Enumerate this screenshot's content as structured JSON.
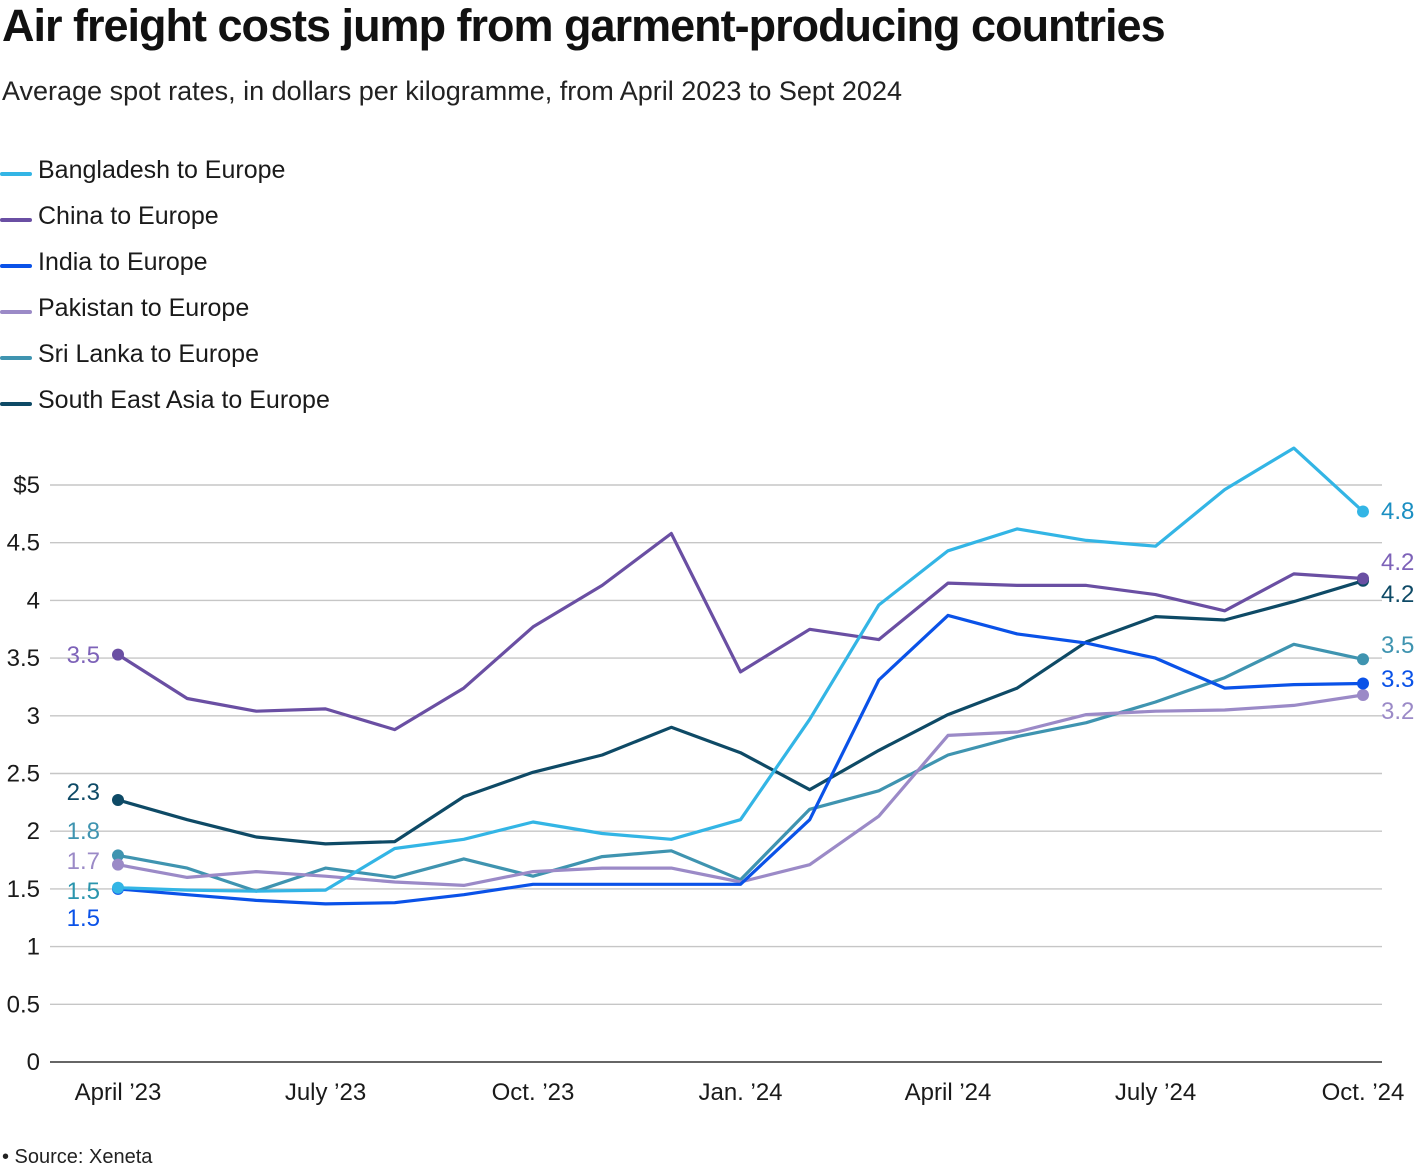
{
  "chart_data": {
    "type": "line",
    "title": "Air freight costs jump from garment-producing countries",
    "subtitle": "Average spot rates, in dollars per kilogramme, from April 2023 to Sept 2024",
    "source": "• Source: Xeneta",
    "xlabel": "",
    "ylabel": "",
    "ylim": [
      0,
      5
    ],
    "grid": true,
    "legend_position": "top-left",
    "y_ticks": [
      {
        "value": 0,
        "label": "0"
      },
      {
        "value": 0.5,
        "label": "0.5"
      },
      {
        "value": 1,
        "label": "1"
      },
      {
        "value": 1.5,
        "label": "1.5"
      },
      {
        "value": 2,
        "label": "2"
      },
      {
        "value": 2.5,
        "label": "2.5"
      },
      {
        "value": 3,
        "label": "3"
      },
      {
        "value": 3.5,
        "label": "3.5"
      },
      {
        "value": 4,
        "label": "4"
      },
      {
        "value": 4.5,
        "label": "4.5"
      },
      {
        "value": 5,
        "label": "$5"
      }
    ],
    "x_ticks": [
      {
        "index": 0,
        "label": "April ’23"
      },
      {
        "index": 3,
        "label": "July ’23"
      },
      {
        "index": 6,
        "label": "Oct. ’23"
      },
      {
        "index": 9,
        "label": "Jan. ’24"
      },
      {
        "index": 12,
        "label": "April ’24"
      },
      {
        "index": 15,
        "label": "July ’24"
      },
      {
        "index": 18,
        "label": "Oct. ’24"
      }
    ],
    "x_count": 19,
    "series": [
      {
        "name": "Bangladesh to Europe",
        "color": "#33b5e5",
        "values": [
          1.51,
          1.49,
          1.48,
          1.49,
          1.85,
          1.93,
          2.08,
          1.98,
          1.93,
          2.1,
          2.97,
          3.96,
          4.43,
          4.62,
          4.52,
          4.47,
          4.96,
          5.32,
          4.77
        ],
        "start_label": "1.5",
        "start_label_color": "#2a95ad",
        "end_label": "4.8",
        "end_label_color": "#1b8fc2"
      },
      {
        "name": "China to Europe",
        "color": "#6a4fa3",
        "values": [
          3.53,
          3.15,
          3.04,
          3.06,
          2.88,
          3.24,
          3.77,
          4.13,
          4.58,
          3.38,
          3.75,
          3.66,
          4.15,
          4.13,
          4.13,
          4.05,
          3.91,
          4.23,
          4.19
        ],
        "start_label": "3.5",
        "start_label_color": "#7d62b8",
        "end_label": "4.2",
        "end_label_color": "#7d62b8"
      },
      {
        "name": "India to Europe",
        "color": "#0a52e8",
        "values": [
          1.5,
          1.45,
          1.4,
          1.37,
          1.38,
          1.45,
          1.54,
          1.54,
          1.54,
          1.54,
          2.1,
          3.31,
          3.87,
          3.71,
          3.63,
          3.5,
          3.24,
          3.27,
          3.28
        ],
        "start_label": "1.5",
        "start_label_color": "#0a52e8",
        "end_label": "3.3",
        "end_label_color": "#0a52e8"
      },
      {
        "name": "Pakistan to Europe",
        "color": "#9b8ac7",
        "values": [
          1.71,
          1.6,
          1.65,
          1.61,
          1.56,
          1.53,
          1.65,
          1.68,
          1.68,
          1.56,
          1.71,
          2.13,
          2.83,
          2.86,
          3.01,
          3.04,
          3.05,
          3.09,
          3.18
        ],
        "start_label": "1.7",
        "start_label_color": "#9b8ac7",
        "end_label": "3.2",
        "end_label_color": "#9b8ac7"
      },
      {
        "name": "Sri Lanka to Europe",
        "color": "#3f94b0",
        "values": [
          1.79,
          1.68,
          1.48,
          1.68,
          1.6,
          1.76,
          1.61,
          1.78,
          1.83,
          1.58,
          2.19,
          2.35,
          2.66,
          2.82,
          2.94,
          3.12,
          3.33,
          3.62,
          3.49
        ],
        "start_label": "1.8",
        "start_label_color": "#3f94b0",
        "end_label": "3.5",
        "end_label_color": "#3f94b0"
      },
      {
        "name": "South East Asia to Europe",
        "color": "#0e4a66",
        "values": [
          2.27,
          2.1,
          1.95,
          1.89,
          1.91,
          2.3,
          2.51,
          2.66,
          2.9,
          2.68,
          2.36,
          2.7,
          3.01,
          3.24,
          3.64,
          3.86,
          3.83,
          3.99,
          4.17
        ],
        "start_label": "2.3",
        "start_label_color": "#0e4a66",
        "end_label": "4.2",
        "end_label_color": "#0e4a66"
      }
    ]
  }
}
